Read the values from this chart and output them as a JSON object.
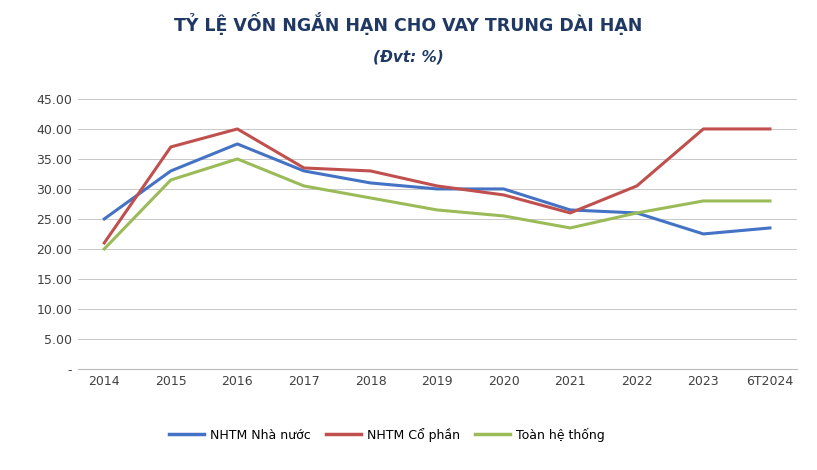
{
  "title_line1": "TỶ LỆ VỐN NGẮN HẠN CHO VAY TRUNG DÀI HẠN",
  "title_line2": "(Đvt: %)",
  "x_labels": [
    "2014",
    "2015",
    "2016",
    "2017",
    "2018",
    "2019",
    "2020",
    "2021",
    "2022",
    "2023",
    "6T2024"
  ],
  "nhtm_nn": [
    25.0,
    33.0,
    37.5,
    33.0,
    31.0,
    30.0,
    30.0,
    26.5,
    26.0,
    22.5,
    23.5
  ],
  "nhtm_cp": [
    21.0,
    37.0,
    40.0,
    33.5,
    33.0,
    30.5,
    29.0,
    26.0,
    30.5,
    40.0,
    40.0
  ],
  "toan_he_thong": [
    20.0,
    31.5,
    35.0,
    30.5,
    28.5,
    26.5,
    25.5,
    23.5,
    26.0,
    28.0,
    28.0
  ],
  "color_nn": "#4472C4",
  "color_cp": "#C0504D",
  "color_ths": "#9BBB59",
  "line_width": 2.2,
  "ylim_min": 0,
  "ylim_max": 47,
  "ytick_vals": [
    0,
    5.0,
    10.0,
    15.0,
    20.0,
    25.0,
    30.0,
    35.0,
    40.0,
    45.0
  ],
  "ytick_labels": [
    "-",
    "5.00",
    "10.00",
    "15.00",
    "20.00",
    "25.00",
    "30.00",
    "35.00",
    "40.00",
    "45.00"
  ],
  "legend_nn": "NHTM Nhà nước",
  "legend_cp": "NHTM Cổ phần",
  "legend_ths": "Toàn hệ thống",
  "bg_color": "#FFFFFF",
  "grid_color": "#BFBFBF",
  "title_color": "#1F3864",
  "tick_color": "#404040"
}
